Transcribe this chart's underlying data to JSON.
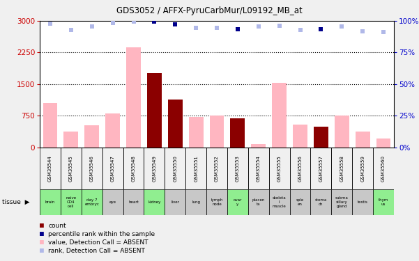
{
  "title": "GDS3052 / AFFX-PyruCarbMur/L09192_MB_at",
  "gsm_labels": [
    "GSM35544",
    "GSM35545",
    "GSM35546",
    "GSM35547",
    "GSM35548",
    "GSM35549",
    "GSM35550",
    "GSM35551",
    "GSM35552",
    "GSM35553",
    "GSM35554",
    "GSM35555",
    "GSM35556",
    "GSM35557",
    "GSM35558",
    "GSM35559",
    "GSM35560"
  ],
  "tissue_labels": [
    "brain",
    "naive\nCD4\ncell",
    "day 7\nembryc",
    "eye",
    "heart",
    "kidney",
    "liver",
    "lung",
    "lymph\nnode",
    "ovar\ny",
    "placen\nta",
    "skeleta\nl\nmuscle",
    "sple\nen",
    "stoma\nch",
    "subma\nxillary\ngland",
    "testis",
    "thym\nus"
  ],
  "tissue_colors": [
    "#90ee90",
    "#90ee90",
    "#90ee90",
    "#c8c8c8",
    "#c8c8c8",
    "#90ee90",
    "#c8c8c8",
    "#c8c8c8",
    "#c8c8c8",
    "#90ee90",
    "#c8c8c8",
    "#c8c8c8",
    "#c8c8c8",
    "#c8c8c8",
    "#c8c8c8",
    "#c8c8c8",
    "#90ee90"
  ],
  "bar_color_present": "#8b0000",
  "bar_color_absent": "#ffb6c1",
  "dot_color_present": "#00008b",
  "dot_color_absent": "#b0b8e8",
  "absent_flags": [
    true,
    true,
    true,
    true,
    true,
    false,
    false,
    true,
    true,
    false,
    true,
    true,
    true,
    false,
    true,
    true,
    true
  ],
  "values": [
    1050,
    380,
    520,
    800,
    2380,
    1760,
    1130,
    730,
    760,
    690,
    80,
    1530,
    540,
    490,
    760,
    380,
    220
  ],
  "ranks": [
    2940,
    2780,
    2860,
    2950,
    2990,
    2990,
    2910,
    2840,
    2840,
    2810,
    2860,
    2880,
    2780,
    2810,
    2870,
    2760,
    2730
  ],
  "ylim_left": [
    0,
    3000
  ],
  "ylim_right": [
    0,
    100
  ],
  "yticks_left": [
    0,
    750,
    1500,
    2250,
    3000
  ],
  "yticks_right": [
    0,
    25,
    50,
    75,
    100
  ],
  "bg_color": "#f0f0f0",
  "plot_bg": "#ffffff",
  "gsm_row_color": "#d0d0d0"
}
